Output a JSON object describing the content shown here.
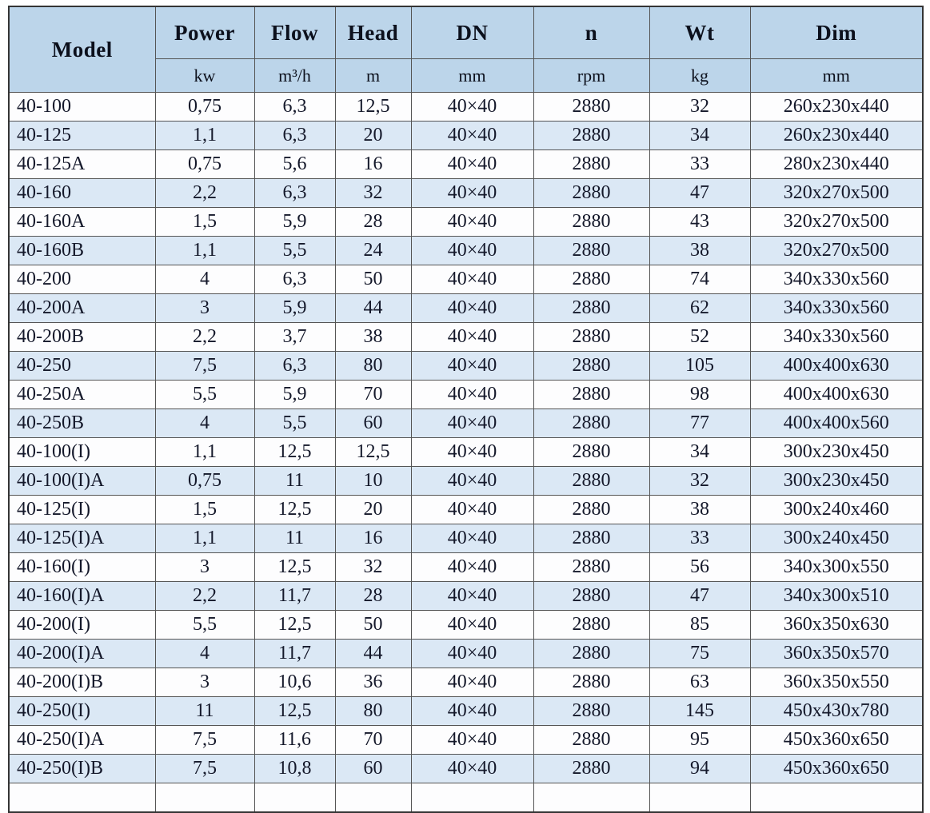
{
  "table": {
    "columns": [
      {
        "label": "Model",
        "unit": ""
      },
      {
        "label": "Power",
        "unit": "kw"
      },
      {
        "label": "Flow",
        "unit": "m³/h"
      },
      {
        "label": "Head",
        "unit": "m"
      },
      {
        "label": "DN",
        "unit": "mm"
      },
      {
        "label": "n",
        "unit": "rpm"
      },
      {
        "label": "Wt",
        "unit": "kg"
      },
      {
        "label": "Dim",
        "unit": "mm"
      }
    ],
    "rows": [
      [
        "40-100",
        "0,75",
        "6,3",
        "12,5",
        "40×40",
        "2880",
        "32",
        "260x230x440"
      ],
      [
        "40-125",
        "1,1",
        "6,3",
        "20",
        "40×40",
        "2880",
        "34",
        "260x230x440"
      ],
      [
        "40-125A",
        "0,75",
        "5,6",
        "16",
        "40×40",
        "2880",
        "33",
        "280x230x440"
      ],
      [
        "40-160",
        "2,2",
        "6,3",
        "32",
        "40×40",
        "2880",
        "47",
        "320x270x500"
      ],
      [
        "40-160A",
        "1,5",
        "5,9",
        "28",
        "40×40",
        "2880",
        "43",
        "320x270x500"
      ],
      [
        "40-160B",
        "1,1",
        "5,5",
        "24",
        "40×40",
        "2880",
        "38",
        "320x270x500"
      ],
      [
        "40-200",
        "4",
        "6,3",
        "50",
        "40×40",
        "2880",
        "74",
        "340x330x560"
      ],
      [
        "40-200A",
        "3",
        "5,9",
        "44",
        "40×40",
        "2880",
        "62",
        "340x330x560"
      ],
      [
        "40-200B",
        "2,2",
        "3,7",
        "38",
        "40×40",
        "2880",
        "52",
        "340x330x560"
      ],
      [
        "40-250",
        "7,5",
        "6,3",
        "80",
        "40×40",
        "2880",
        "105",
        "400x400x630"
      ],
      [
        "40-250A",
        "5,5",
        "5,9",
        "70",
        "40×40",
        "2880",
        "98",
        "400x400x630"
      ],
      [
        "40-250B",
        "4",
        "5,5",
        "60",
        "40×40",
        "2880",
        "77",
        "400x400x560"
      ],
      [
        "40-100(I)",
        "1,1",
        "12,5",
        "12,5",
        "40×40",
        "2880",
        "34",
        "300x230x450"
      ],
      [
        "40-100(I)A",
        "0,75",
        "11",
        "10",
        "40×40",
        "2880",
        "32",
        "300x230x450"
      ],
      [
        "40-125(I)",
        "1,5",
        "12,5",
        "20",
        "40×40",
        "2880",
        "38",
        "300x240x460"
      ],
      [
        "40-125(I)A",
        "1,1",
        "11",
        "16",
        "40×40",
        "2880",
        "33",
        "300x240x450"
      ],
      [
        "40-160(I)",
        "3",
        "12,5",
        "32",
        "40×40",
        "2880",
        "56",
        "340x300x550"
      ],
      [
        "40-160(I)A",
        "2,2",
        "11,7",
        "28",
        "40×40",
        "2880",
        "47",
        "340x300x510"
      ],
      [
        "40-200(I)",
        "5,5",
        "12,5",
        "50",
        "40×40",
        "2880",
        "85",
        "360x350x630"
      ],
      [
        "40-200(I)A",
        "4",
        "11,7",
        "44",
        "40×40",
        "2880",
        "75",
        "360x350x570"
      ],
      [
        "40-200(I)B",
        "3",
        "10,6",
        "36",
        "40×40",
        "2880",
        "63",
        "360x350x550"
      ],
      [
        "40-250(I)",
        "11",
        "12,5",
        "80",
        "40×40",
        "2880",
        "145",
        "450x430x780"
      ],
      [
        "40-250(I)A",
        "7,5",
        "11,6",
        "70",
        "40×40",
        "2880",
        "95",
        "450x360x650"
      ],
      [
        "40-250(I)B",
        "7,5",
        "10,8",
        "60",
        "40×40",
        "2880",
        "94",
        "450x360x650"
      ],
      [
        "",
        "",
        "",
        "",
        "",
        "",
        "",
        ""
      ]
    ],
    "colors": {
      "header_bg": "#bcd5ea",
      "stripe_bg": "#dbe8f5",
      "plain_bg": "#fdfdfe",
      "border": "#555555",
      "text": "#14182a"
    }
  }
}
